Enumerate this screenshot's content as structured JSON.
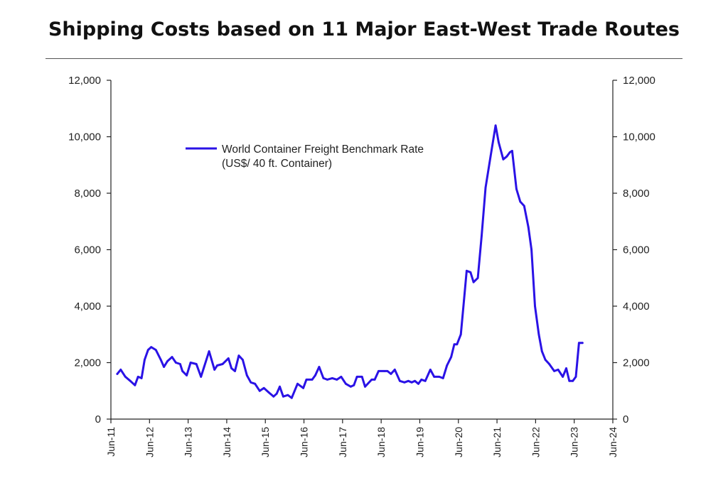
{
  "title": "Shipping Costs based on 11 Major East-West Trade Routes",
  "chart_data": {
    "type": "line",
    "title": "Shipping Costs based on 11 Major East-West Trade Routes",
    "xlabel": "",
    "ylabel": "",
    "ylim": [
      0,
      12000
    ],
    "xlim": [
      "Jun-11",
      "Jun-24"
    ],
    "y_ticks": [
      "0",
      "2,000",
      "4,000",
      "6,000",
      "8,000",
      "10,000",
      "12,000"
    ],
    "x_ticks": [
      "Jun-11",
      "Jun-12",
      "Jun-13",
      "Jun-14",
      "Jun-15",
      "Jun-16",
      "Jun-17",
      "Jun-18",
      "Jun-19",
      "Jun-20",
      "Jun-21",
      "Jun-22",
      "Jun-23",
      "Jun-24"
    ],
    "grid": false,
    "legend_position": "top-left",
    "legend_lines": [
      "World Container Freight Benchmark Rate",
      "(US$/ 40 ft. Container)"
    ],
    "series": [
      {
        "name": "World Container Freight Benchmark Rate (US$/ 40 ft. Container)",
        "color": "#2a12e6",
        "x": [
          2011.58,
          2011.67,
          2011.79,
          2011.92,
          2012.04,
          2012.12,
          2012.21,
          2012.29,
          2012.38,
          2012.46,
          2012.58,
          2012.71,
          2012.79,
          2012.88,
          2013.0,
          2013.1,
          2013.21,
          2013.27,
          2013.38,
          2013.48,
          2013.63,
          2013.75,
          2013.83,
          2013.96,
          2014.1,
          2014.17,
          2014.31,
          2014.46,
          2014.54,
          2014.63,
          2014.73,
          2014.83,
          2014.94,
          2015.04,
          2015.15,
          2015.27,
          2015.38,
          2015.5,
          2015.63,
          2015.71,
          2015.79,
          2015.88,
          2016.0,
          2016.1,
          2016.25,
          2016.4,
          2016.48,
          2016.63,
          2016.71,
          2016.81,
          2016.92,
          2017.02,
          2017.15,
          2017.27,
          2017.38,
          2017.5,
          2017.63,
          2017.71,
          2017.79,
          2017.92,
          2018.0,
          2018.17,
          2018.25,
          2018.35,
          2018.5,
          2018.58,
          2018.67,
          2018.77,
          2018.9,
          2019.02,
          2019.12,
          2019.21,
          2019.29,
          2019.38,
          2019.46,
          2019.56,
          2019.69,
          2019.79,
          2019.92,
          2020.02,
          2020.12,
          2020.23,
          2020.31,
          2020.38,
          2020.48,
          2020.56,
          2020.63,
          2020.73,
          2020.81,
          2020.92,
          2021.02,
          2021.12,
          2021.25,
          2021.38,
          2021.46,
          2021.58,
          2021.67,
          2021.75,
          2021.81,
          2021.92,
          2022.02,
          2022.12,
          2022.23,
          2022.31,
          2022.4,
          2022.5,
          2022.58,
          2022.67,
          2022.77,
          2022.9,
          2023.0,
          2023.12,
          2023.21,
          2023.29,
          2023.38,
          2023.46,
          2023.54,
          2023.63
        ],
        "y": [
          1600,
          1750,
          1500,
          1350,
          1200,
          1500,
          1450,
          2100,
          2450,
          2550,
          2450,
          2100,
          1850,
          2050,
          2200,
          2000,
          1950,
          1700,
          1550,
          2000,
          1950,
          1500,
          1850,
          2400,
          1750,
          1900,
          1950,
          2150,
          1800,
          1700,
          2250,
          2100,
          1550,
          1300,
          1250,
          1000,
          1100,
          950,
          800,
          900,
          1150,
          800,
          850,
          750,
          1250,
          1100,
          1400,
          1400,
          1550,
          1850,
          1450,
          1400,
          1450,
          1400,
          1500,
          1250,
          1150,
          1200,
          1500,
          1500,
          1150,
          1400,
          1400,
          1700,
          1700,
          1700,
          1600,
          1750,
          1350,
          1300,
          1350,
          1300,
          1350,
          1250,
          1400,
          1350,
          1750,
          1500,
          1500,
          1450,
          1900,
          2200,
          2650,
          2650,
          3000,
          4200,
          5250,
          5200,
          4850,
          5000,
          6500,
          8200,
          9300,
          10400,
          9800,
          9200,
          9300,
          9450,
          9500,
          8150,
          7700,
          7550,
          6800,
          6000,
          4000,
          3000,
          2400,
          2100,
          1950,
          1700,
          1750,
          1500,
          1800,
          1350,
          1350,
          1500,
          2700,
          2700
        ]
      }
    ]
  }
}
